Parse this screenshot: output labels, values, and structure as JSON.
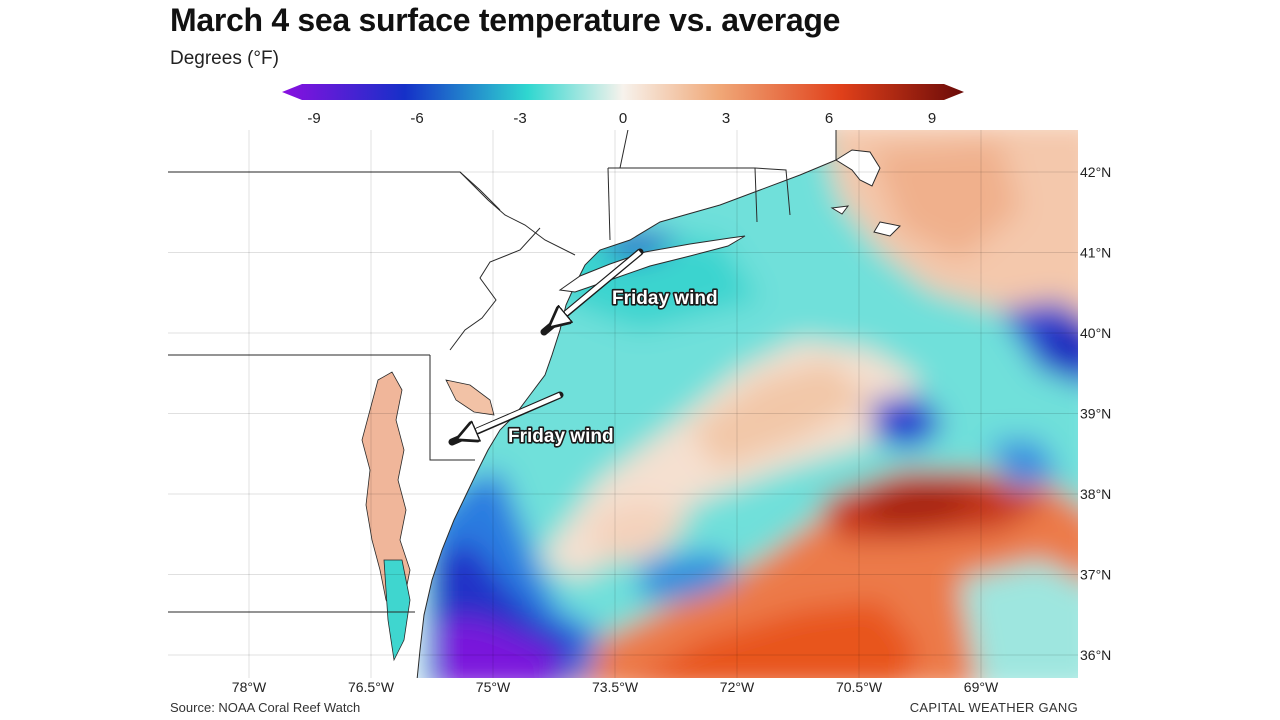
{
  "header": {
    "title": "March 4 sea surface temperature vs. average",
    "subtitle": "Degrees (°F)"
  },
  "colorbar": {
    "ticks": [
      "-9",
      "-6",
      "-3",
      "0",
      "3",
      "6",
      "9"
    ],
    "range": [
      -9,
      9
    ],
    "colors": {
      "min": "#8a10e0",
      "cold": "#1530c8",
      "cool": "#2fd7d0",
      "neutral": "#f7f2ec",
      "warm": "#f0a878",
      "hot": "#e0401a",
      "max": "#6a0a08"
    }
  },
  "map": {
    "lon_ticks": [
      "78°W",
      "76.5°W",
      "75°W",
      "73.5°W",
      "72°W",
      "70.5°W",
      "69°W"
    ],
    "lat_ticks": [
      "42°N",
      "41°N",
      "40°N",
      "39°N",
      "38°N",
      "37°N",
      "36°N"
    ],
    "annotations": [
      {
        "label": "Friday wind",
        "icon": "wind-arrow-icon"
      },
      {
        "label": "Friday wind",
        "icon": "wind-arrow-icon"
      }
    ]
  },
  "footer": {
    "source": "Source: NOAA Coral Reef Watch",
    "credit": "CAPITAL WEATHER GANG"
  }
}
